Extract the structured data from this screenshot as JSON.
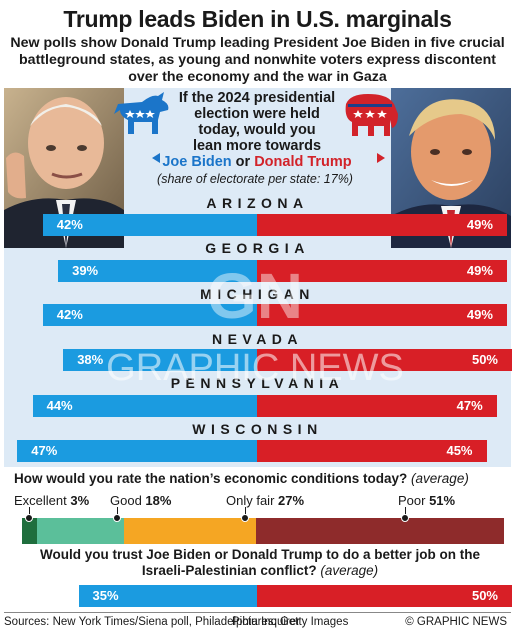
{
  "title": "Trump leads Biden in U.S. marginals",
  "subtitle": "New polls show Donald Trump leading President Joe Biden in five crucial battleground states, as young and nonwhite voters express discontent over the economy and the war in Gaza",
  "question": {
    "line1": "If the 2024 presidential",
    "line2": "election were held",
    "line3": "today, would you",
    "line4": "lean more towards",
    "biden": "Joe Biden",
    "or": "or",
    "trump": "Donald Trump",
    "share_note": "(share of electorate per state: 17%)"
  },
  "colors": {
    "biden": "#1b9be0",
    "trump": "#d81f26",
    "panel": "#ddeaf6",
    "excellent": "#1f6e3d",
    "good": "#5bbf9a",
    "only_fair": "#f5a623",
    "poor": "#8e2b2b"
  },
  "chart_data": [
    {
      "type": "bar",
      "orientation": "horizontal-diverging",
      "categories": [
        "ARIZONA",
        "GEORGIA",
        "MICHIGAN",
        "NEVADA",
        "PENNSYLVANIA",
        "WISCONSIN"
      ],
      "series": [
        {
          "name": "Joe Biden",
          "values": [
            42,
            39,
            42,
            38,
            44,
            47
          ],
          "labels": [
            "42%",
            "39%",
            "42%",
            "38%",
            "44%",
            "47%"
          ]
        },
        {
          "name": "Donald Trump",
          "values": [
            49,
            49,
            49,
            50,
            47,
            45
          ],
          "labels": [
            "49%",
            "49%",
            "49%",
            "50%",
            "47%",
            "45%"
          ]
        }
      ]
    },
    {
      "type": "bar",
      "orientation": "stacked-horizontal",
      "title": "How would you rate the nation’s economic conditions today?",
      "title_note": "(average)",
      "categories": [
        "Excellent",
        "Good",
        "Only fair",
        "Poor"
      ],
      "values": [
        3,
        18,
        27,
        51
      ],
      "labels": [
        "3%",
        "18%",
        "27%",
        "51%"
      ]
    },
    {
      "type": "bar",
      "orientation": "horizontal-diverging",
      "title": "Would you trust Joe Biden or Donald Trump to do a better job on the Israeli-Palestinian conflict?",
      "title_note": "(average)",
      "categories": [
        ""
      ],
      "series": [
        {
          "name": "Joe Biden",
          "values": [
            35
          ],
          "labels": [
            "35%"
          ]
        },
        {
          "name": "Donald Trump",
          "values": [
            50
          ],
          "labels": [
            "50%"
          ]
        }
      ]
    }
  ],
  "footer": {
    "sources": "Sources: New York Times/Siena poll, Philadelphia Inquirer",
    "pictures": "Pictures: Getty Images",
    "credit": "© GRAPHIC NEWS"
  },
  "watermark": "GRAPHIC NEWS",
  "watermark_logo": "GN",
  "icons": [
    "democrat-donkey-icon",
    "republican-elephant-icon"
  ]
}
